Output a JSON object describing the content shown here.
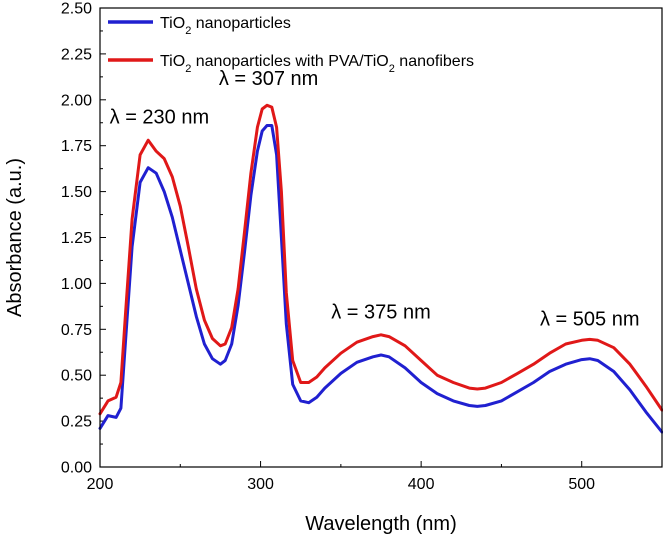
{
  "chart_data": {
    "type": "line",
    "title": "",
    "xlabel": "Wavelength (nm)",
    "ylabel": "Absorbance (a.u.)",
    "xlim": [
      200,
      550
    ],
    "ylim": [
      0.0,
      2.5
    ],
    "x_ticks": [
      200,
      300,
      400,
      500
    ],
    "y_ticks": [
      "0.00",
      "0.25",
      "0.50",
      "0.75",
      "1.00",
      "1.25",
      "1.50",
      "1.75",
      "2.00",
      "2.25",
      "2.50"
    ],
    "grid": false,
    "legend_position": "top-left",
    "series": [
      {
        "name": "TiO",
        "name_sub": "2",
        "name_rest": " nanoparticles",
        "color": "#2020d0",
        "x": [
          200,
          205,
          210,
          213,
          216,
          220,
          225,
          230,
          235,
          240,
          245,
          250,
          255,
          260,
          265,
          270,
          275,
          278,
          282,
          286,
          290,
          294,
          298,
          301,
          304,
          307,
          310,
          313,
          316,
          320,
          325,
          330,
          335,
          340,
          350,
          360,
          370,
          375,
          380,
          390,
          400,
          410,
          420,
          430,
          435,
          440,
          450,
          460,
          470,
          480,
          490,
          500,
          505,
          510,
          520,
          530,
          540,
          550
        ],
        "y": [
          0.21,
          0.28,
          0.27,
          0.32,
          0.7,
          1.2,
          1.55,
          1.63,
          1.6,
          1.5,
          1.36,
          1.18,
          1.0,
          0.82,
          0.67,
          0.59,
          0.56,
          0.58,
          0.67,
          0.88,
          1.17,
          1.48,
          1.72,
          1.83,
          1.86,
          1.86,
          1.7,
          1.25,
          0.78,
          0.45,
          0.36,
          0.35,
          0.38,
          0.43,
          0.51,
          0.57,
          0.6,
          0.61,
          0.6,
          0.54,
          0.46,
          0.4,
          0.36,
          0.335,
          0.33,
          0.335,
          0.36,
          0.41,
          0.46,
          0.52,
          0.56,
          0.585,
          0.59,
          0.58,
          0.52,
          0.42,
          0.3,
          0.19
        ]
      },
      {
        "name": "TiO",
        "name_sub": "2",
        "name_rest": " nanoparticles with PVA/TiO",
        "name_sub2": "2",
        "name_rest2": " nanofibers",
        "color": "#e01818",
        "x": [
          200,
          205,
          210,
          213,
          216,
          220,
          225,
          230,
          235,
          240,
          245,
          250,
          255,
          260,
          265,
          270,
          275,
          278,
          282,
          286,
          290,
          294,
          298,
          301,
          304,
          307,
          310,
          313,
          316,
          320,
          325,
          330,
          335,
          340,
          350,
          360,
          370,
          375,
          380,
          390,
          400,
          410,
          420,
          430,
          435,
          440,
          450,
          460,
          470,
          480,
          490,
          500,
          505,
          510,
          520,
          530,
          540,
          550
        ],
        "y": [
          0.29,
          0.36,
          0.38,
          0.46,
          0.85,
          1.35,
          1.7,
          1.78,
          1.72,
          1.68,
          1.58,
          1.42,
          1.2,
          0.97,
          0.8,
          0.7,
          0.66,
          0.67,
          0.76,
          0.97,
          1.28,
          1.6,
          1.85,
          1.95,
          1.97,
          1.96,
          1.85,
          1.5,
          0.95,
          0.58,
          0.46,
          0.46,
          0.49,
          0.54,
          0.62,
          0.68,
          0.71,
          0.72,
          0.71,
          0.66,
          0.58,
          0.5,
          0.46,
          0.43,
          0.425,
          0.43,
          0.46,
          0.51,
          0.56,
          0.62,
          0.67,
          0.69,
          0.695,
          0.69,
          0.65,
          0.56,
          0.44,
          0.31
        ]
      }
    ],
    "annotations": [
      {
        "text": "λ = 230 nm",
        "x": 237,
        "y": 1.87
      },
      {
        "text": "λ = 307 nm",
        "x": 305,
        "y": 2.08
      },
      {
        "text": "λ = 375 nm",
        "x": 375,
        "y": 0.81
      },
      {
        "text": "λ = 505 nm",
        "x": 505,
        "y": 0.77
      }
    ]
  }
}
